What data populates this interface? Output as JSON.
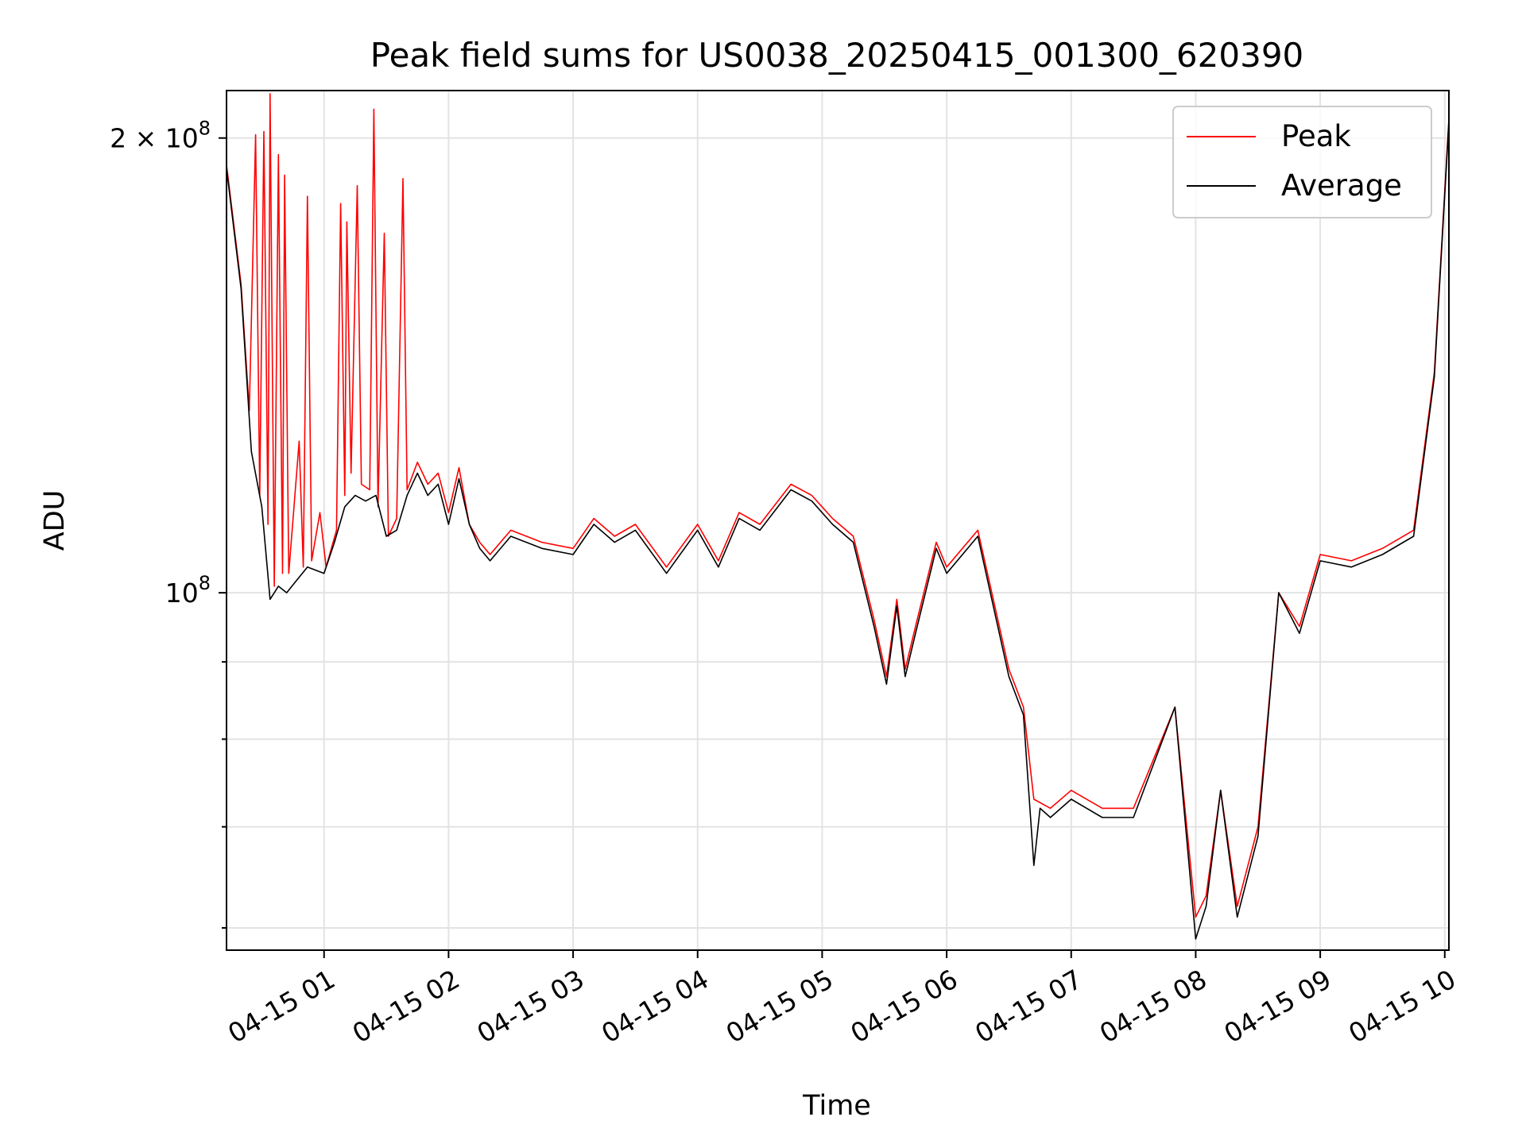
{
  "chart_data": {
    "type": "line",
    "title": "Peak field sums for US0038_20250415_001300_620390",
    "xlabel": "Time",
    "ylabel": "ADU",
    "x_ticks": [
      "04-15 01",
      "04-15 02",
      "04-15 03",
      "04-15 04",
      "04-15 05",
      "04-15 06",
      "04-15 07",
      "04-15 08",
      "04-15 09",
      "04-15 10"
    ],
    "y_major_tick_labels": [
      "10^8",
      "2 × 10^8"
    ],
    "y_major_tick_values": [
      100000000,
      200000000
    ],
    "y_minor_tick_values": [
      60000000,
      70000000,
      80000000,
      90000000
    ],
    "y_scale": "log",
    "ylim": [
      58000000,
      215000000
    ],
    "xlim": [
      "2025-04-15T00:13",
      "2025-04-15T10:02"
    ],
    "grid": true,
    "legend_position": "top-right",
    "x_time_format": "YYYY-MM-DDTHH:MM",
    "series": [
      {
        "name": "Peak",
        "color": "#ff0000",
        "points": [
          [
            "2025-04-15T00:13",
            192000000
          ],
          [
            "2025-04-15T00:20",
            160000000
          ],
          [
            "2025-04-15T00:24",
            132000000
          ],
          [
            "2025-04-15T00:27",
            201000000
          ],
          [
            "2025-04-15T00:29",
            116000000
          ],
          [
            "2025-04-15T00:31",
            202000000
          ],
          [
            "2025-04-15T00:33",
            111000000
          ],
          [
            "2025-04-15T00:34",
            214000000
          ],
          [
            "2025-04-15T00:36",
            101000000
          ],
          [
            "2025-04-15T00:38",
            195000000
          ],
          [
            "2025-04-15T00:40",
            103000000
          ],
          [
            "2025-04-15T00:41",
            189000000
          ],
          [
            "2025-04-15T00:43",
            103000000
          ],
          [
            "2025-04-15T00:48",
            126000000
          ],
          [
            "2025-04-15T00:50",
            104000000
          ],
          [
            "2025-04-15T00:52",
            183000000
          ],
          [
            "2025-04-15T00:54",
            105000000
          ],
          [
            "2025-04-15T00:58",
            113000000
          ],
          [
            "2025-04-15T01:01",
            104000000
          ],
          [
            "2025-04-15T01:06",
            110000000
          ],
          [
            "2025-04-15T01:08",
            181000000
          ],
          [
            "2025-04-15T01:10",
            116000000
          ],
          [
            "2025-04-15T01:11",
            176000000
          ],
          [
            "2025-04-15T01:13",
            120000000
          ],
          [
            "2025-04-15T01:16",
            186000000
          ],
          [
            "2025-04-15T01:18",
            118000000
          ],
          [
            "2025-04-15T01:22",
            117000000
          ],
          [
            "2025-04-15T01:24",
            209000000
          ],
          [
            "2025-04-15T01:26",
            114000000
          ],
          [
            "2025-04-15T01:29",
            173000000
          ],
          [
            "2025-04-15T01:31",
            109000000
          ],
          [
            "2025-04-15T01:35",
            112000000
          ],
          [
            "2025-04-15T01:38",
            188000000
          ],
          [
            "2025-04-15T01:40",
            117000000
          ],
          [
            "2025-04-15T01:45",
            122000000
          ],
          [
            "2025-04-15T01:50",
            118000000
          ],
          [
            "2025-04-15T01:55",
            120000000
          ],
          [
            "2025-04-15T02:00",
            113000000
          ],
          [
            "2025-04-15T02:05",
            121000000
          ],
          [
            "2025-04-15T02:10",
            111000000
          ],
          [
            "2025-04-15T02:15",
            108000000
          ],
          [
            "2025-04-15T02:20",
            106000000
          ],
          [
            "2025-04-15T02:30",
            110000000
          ],
          [
            "2025-04-15T02:45",
            108000000
          ],
          [
            "2025-04-15T03:00",
            107000000
          ],
          [
            "2025-04-15T03:10",
            112000000
          ],
          [
            "2025-04-15T03:20",
            109000000
          ],
          [
            "2025-04-15T03:30",
            111000000
          ],
          [
            "2025-04-15T03:45",
            104000000
          ],
          [
            "2025-04-15T04:00",
            111000000
          ],
          [
            "2025-04-15T04:10",
            105000000
          ],
          [
            "2025-04-15T04:20",
            113000000
          ],
          [
            "2025-04-15T04:30",
            111000000
          ],
          [
            "2025-04-15T04:45",
            118000000
          ],
          [
            "2025-04-15T04:55",
            116000000
          ],
          [
            "2025-04-15T05:05",
            112000000
          ],
          [
            "2025-04-15T05:15",
            109000000
          ],
          [
            "2025-04-15T05:25",
            96000000
          ],
          [
            "2025-04-15T05:31",
            88000000
          ],
          [
            "2025-04-15T05:36",
            99000000
          ],
          [
            "2025-04-15T05:40",
            89000000
          ],
          [
            "2025-04-15T05:45",
            95000000
          ],
          [
            "2025-04-15T05:55",
            108000000
          ],
          [
            "2025-04-15T06:00",
            104000000
          ],
          [
            "2025-04-15T06:15",
            110000000
          ],
          [
            "2025-04-15T06:30",
            89000000
          ],
          [
            "2025-04-15T06:37",
            84000000
          ],
          [
            "2025-04-15T06:42",
            73000000
          ],
          [
            "2025-04-15T06:50",
            72000000
          ],
          [
            "2025-04-15T07:00",
            74000000
          ],
          [
            "2025-04-15T07:15",
            72000000
          ],
          [
            "2025-04-15T07:30",
            72000000
          ],
          [
            "2025-04-15T07:50",
            84000000
          ],
          [
            "2025-04-15T08:00",
            61000000
          ],
          [
            "2025-04-15T08:05",
            63000000
          ],
          [
            "2025-04-15T08:12",
            74000000
          ],
          [
            "2025-04-15T08:20",
            62000000
          ],
          [
            "2025-04-15T08:30",
            70000000
          ],
          [
            "2025-04-15T08:40",
            100000000
          ],
          [
            "2025-04-15T08:50",
            95000000
          ],
          [
            "2025-04-15T09:00",
            106000000
          ],
          [
            "2025-04-15T09:15",
            105000000
          ],
          [
            "2025-04-15T09:30",
            107000000
          ],
          [
            "2025-04-15T09:45",
            110000000
          ],
          [
            "2025-04-15T09:55",
            140000000
          ],
          [
            "2025-04-15T10:02",
            206000000
          ]
        ]
      },
      {
        "name": "Average",
        "color": "#000000",
        "points": [
          [
            "2025-04-15T00:13",
            191000000
          ],
          [
            "2025-04-15T00:20",
            159000000
          ],
          [
            "2025-04-15T00:25",
            124000000
          ],
          [
            "2025-04-15T00:30",
            114000000
          ],
          [
            "2025-04-15T00:34",
            99000000
          ],
          [
            "2025-04-15T00:38",
            101000000
          ],
          [
            "2025-04-15T00:42",
            100000000
          ],
          [
            "2025-04-15T00:47",
            102000000
          ],
          [
            "2025-04-15T00:52",
            104000000
          ],
          [
            "2025-04-15T01:00",
            103000000
          ],
          [
            "2025-04-15T01:05",
            108000000
          ],
          [
            "2025-04-15T01:10",
            114000000
          ],
          [
            "2025-04-15T01:15",
            116000000
          ],
          [
            "2025-04-15T01:20",
            115000000
          ],
          [
            "2025-04-15T01:25",
            116000000
          ],
          [
            "2025-04-15T01:30",
            109000000
          ],
          [
            "2025-04-15T01:35",
            110000000
          ],
          [
            "2025-04-15T01:40",
            116000000
          ],
          [
            "2025-04-15T01:45",
            120000000
          ],
          [
            "2025-04-15T01:50",
            116000000
          ],
          [
            "2025-04-15T01:55",
            118000000
          ],
          [
            "2025-04-15T02:00",
            111000000
          ],
          [
            "2025-04-15T02:05",
            119000000
          ],
          [
            "2025-04-15T02:10",
            111000000
          ],
          [
            "2025-04-15T02:15",
            107000000
          ],
          [
            "2025-04-15T02:20",
            105000000
          ],
          [
            "2025-04-15T02:30",
            109000000
          ],
          [
            "2025-04-15T02:45",
            107000000
          ],
          [
            "2025-04-15T03:00",
            106000000
          ],
          [
            "2025-04-15T03:10",
            111000000
          ],
          [
            "2025-04-15T03:20",
            108000000
          ],
          [
            "2025-04-15T03:30",
            110000000
          ],
          [
            "2025-04-15T03:45",
            103000000
          ],
          [
            "2025-04-15T04:00",
            110000000
          ],
          [
            "2025-04-15T04:10",
            104000000
          ],
          [
            "2025-04-15T04:20",
            112000000
          ],
          [
            "2025-04-15T04:30",
            110000000
          ],
          [
            "2025-04-15T04:45",
            117000000
          ],
          [
            "2025-04-15T04:55",
            115000000
          ],
          [
            "2025-04-15T05:05",
            111000000
          ],
          [
            "2025-04-15T05:15",
            108000000
          ],
          [
            "2025-04-15T05:25",
            95000000
          ],
          [
            "2025-04-15T05:31",
            87000000
          ],
          [
            "2025-04-15T05:36",
            98000000
          ],
          [
            "2025-04-15T05:40",
            88000000
          ],
          [
            "2025-04-15T05:45",
            94000000
          ],
          [
            "2025-04-15T05:55",
            107000000
          ],
          [
            "2025-04-15T06:00",
            103000000
          ],
          [
            "2025-04-15T06:15",
            109000000
          ],
          [
            "2025-04-15T06:30",
            88000000
          ],
          [
            "2025-04-15T06:37",
            83000000
          ],
          [
            "2025-04-15T06:42",
            66000000
          ],
          [
            "2025-04-15T06:45",
            72000000
          ],
          [
            "2025-04-15T06:50",
            71000000
          ],
          [
            "2025-04-15T07:00",
            73000000
          ],
          [
            "2025-04-15T07:15",
            71000000
          ],
          [
            "2025-04-15T07:30",
            71000000
          ],
          [
            "2025-04-15T07:50",
            84000000
          ],
          [
            "2025-04-15T08:00",
            59000000
          ],
          [
            "2025-04-15T08:05",
            62000000
          ],
          [
            "2025-04-15T08:12",
            74000000
          ],
          [
            "2025-04-15T08:20",
            61000000
          ],
          [
            "2025-04-15T08:30",
            69000000
          ],
          [
            "2025-04-15T08:40",
            100000000
          ],
          [
            "2025-04-15T08:50",
            94000000
          ],
          [
            "2025-04-15T09:00",
            105000000
          ],
          [
            "2025-04-15T09:15",
            104000000
          ],
          [
            "2025-04-15T09:30",
            106000000
          ],
          [
            "2025-04-15T09:45",
            109000000
          ],
          [
            "2025-04-15T09:55",
            139000000
          ],
          [
            "2025-04-15T10:02",
            205000000
          ]
        ]
      }
    ]
  }
}
